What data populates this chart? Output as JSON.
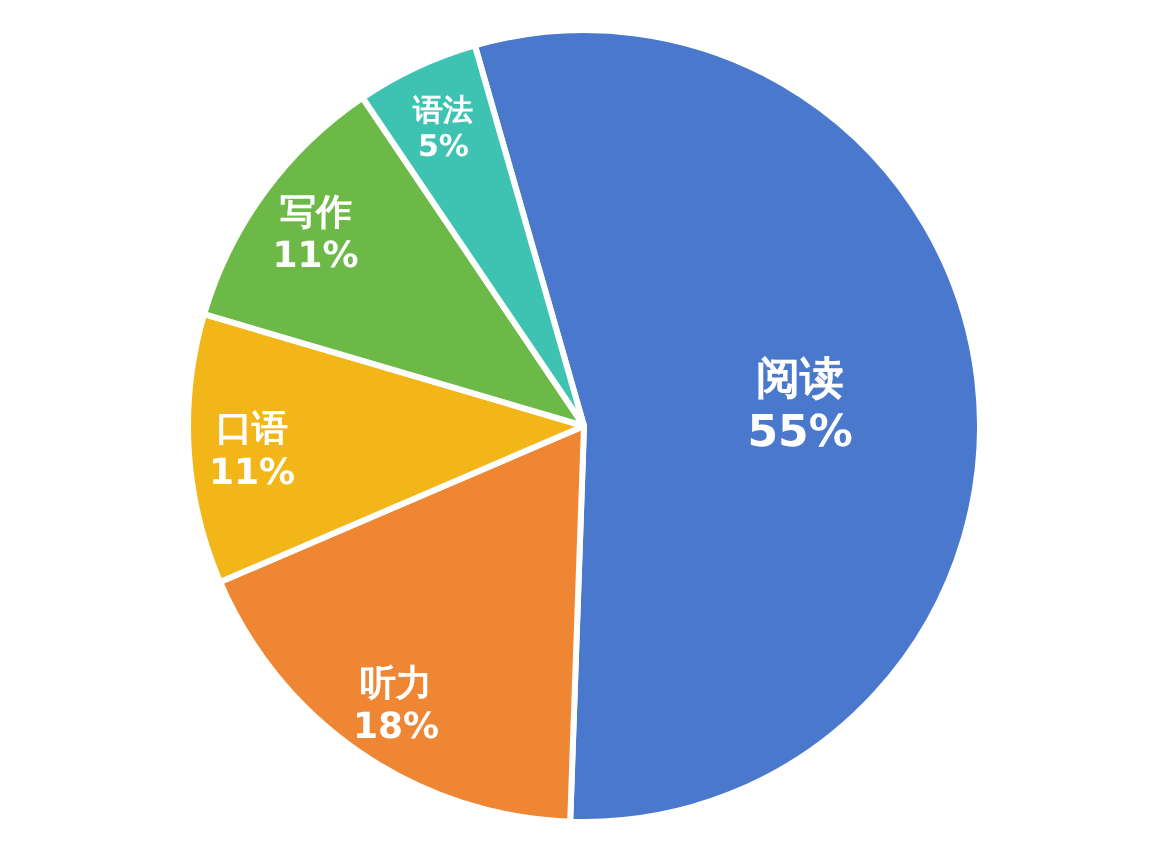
{
  "chart_data": {
    "type": "pie",
    "categories": [
      "阅读",
      "听力",
      "口语",
      "写作",
      "语法"
    ],
    "values": [
      55,
      18,
      11,
      11,
      5
    ],
    "colors": [
      "#4a78cc",
      "#ef8634",
      "#f2b619",
      "#6cb947",
      "#3ec3b2"
    ],
    "value_labels": [
      "55%",
      "18%",
      "11%",
      "11%",
      "5%"
    ]
  }
}
